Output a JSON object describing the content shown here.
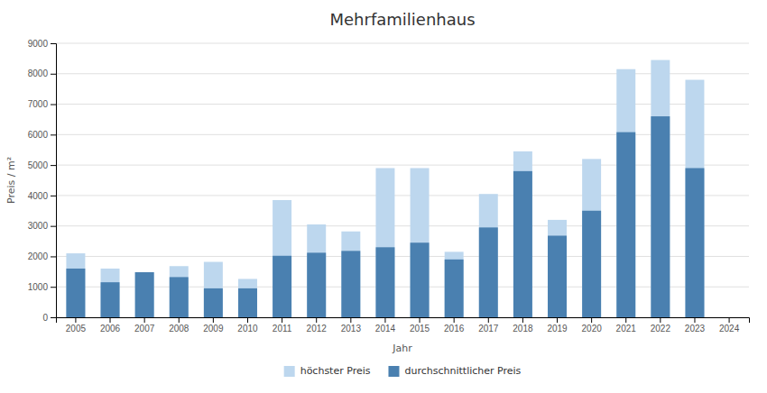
{
  "chart_data": {
    "type": "bar",
    "title": "Mehrfamilienhaus",
    "x_label": "Jahr",
    "y_label": "Preis / m²",
    "categories": [
      "2005",
      "2006",
      "2007",
      "2008",
      "2009",
      "2010",
      "2011",
      "2012",
      "2013",
      "2014",
      "2015",
      "2016",
      "2017",
      "2018",
      "2019",
      "2020",
      "2021",
      "2022",
      "2023",
      "2024"
    ],
    "series": [
      {
        "name": "höchster Preis",
        "color": "#bdd7ee",
        "values": [
          2100,
          1600,
          1480,
          1680,
          1820,
          1260,
          3850,
          3050,
          2820,
          4900,
          4900,
          2150,
          4050,
          5450,
          3200,
          5200,
          8150,
          8450,
          7800,
          0
        ]
      },
      {
        "name": "durchschnittlicher Preis",
        "color": "#4a80b0",
        "values": [
          1600,
          1150,
          1480,
          1320,
          950,
          950,
          2020,
          2120,
          2180,
          2300,
          2450,
          1900,
          2950,
          4800,
          2680,
          3500,
          6080,
          6600,
          4900,
          0
        ]
      }
    ],
    "stacked": false,
    "ylim": [
      0,
      9000
    ],
    "yticks": [
      0,
      1000,
      2000,
      3000,
      4000,
      5000,
      6000,
      7000,
      8000,
      9000
    ],
    "grid": true,
    "legend": "bottom"
  }
}
